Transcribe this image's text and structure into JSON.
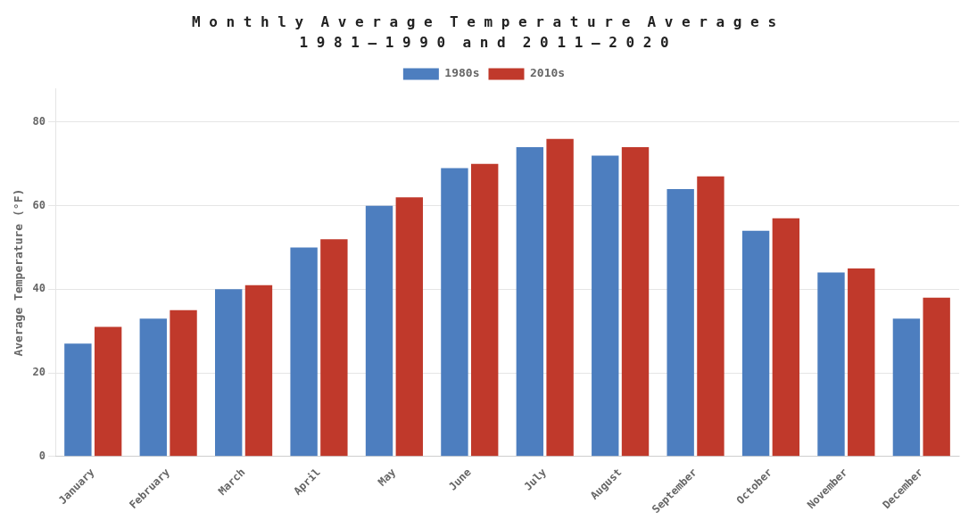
{
  "chart_data": {
    "type": "bar",
    "title": "M o n t h l y  A v e r a g e  T e m p e r a t u r e  A v e r a g e s",
    "subtitle": "1 9 8 1 – 1 9 9 0  a n d  2 0 1 1 – 2 0 2 0",
    "ylabel": "Average Temperature (°F)",
    "categories": [
      "January",
      "February",
      "March",
      "April",
      "May",
      "June",
      "July",
      "August",
      "September",
      "October",
      "November",
      "December"
    ],
    "series": [
      {
        "name": "1980s",
        "color": "#4D7EBF",
        "values": [
          27,
          33,
          40,
          50,
          60,
          69,
          74,
          72,
          64,
          54,
          44,
          33
        ]
      },
      {
        "name": "2010s",
        "color": "#C0392B",
        "values": [
          31,
          35,
          41,
          52,
          62,
          70,
          76,
          74,
          67,
          57,
          45,
          38
        ]
      }
    ],
    "ylim": [
      0,
      88
    ],
    "yticks": [
      0,
      20,
      40,
      60,
      80
    ],
    "grid": true,
    "legend": "top"
  }
}
